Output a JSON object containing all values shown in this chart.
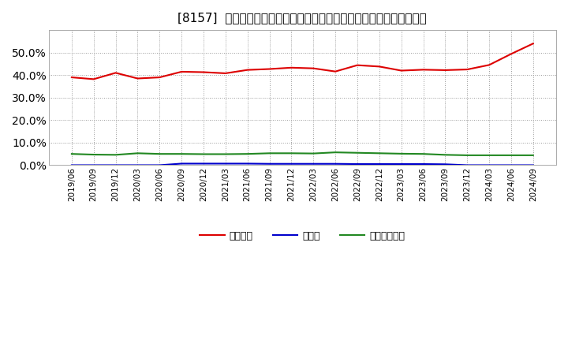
{
  "title": "[8157]  自己資本、のれん、繰延税金資産の総資産に対する比率の推移",
  "x_labels": [
    "2019/06",
    "2019/09",
    "2019/12",
    "2020/03",
    "2020/06",
    "2020/09",
    "2020/12",
    "2021/03",
    "2021/06",
    "2021/09",
    "2021/12",
    "2022/03",
    "2022/06",
    "2022/09",
    "2022/12",
    "2023/03",
    "2023/06",
    "2023/09",
    "2023/12",
    "2024/03",
    "2024/06",
    "2024/09"
  ],
  "jiko_shihon": [
    0.39,
    0.382,
    0.41,
    0.385,
    0.39,
    0.415,
    0.413,
    0.408,
    0.423,
    0.427,
    0.433,
    0.43,
    0.416,
    0.444,
    0.438,
    0.42,
    0.424,
    0.422,
    0.425,
    0.445,
    0.494,
    0.54
  ],
  "noren": [
    0.0,
    0.0,
    0.0,
    0.0,
    0.0,
    0.007,
    0.007,
    0.007,
    0.007,
    0.006,
    0.006,
    0.006,
    0.006,
    0.005,
    0.005,
    0.005,
    0.005,
    0.004,
    0.0,
    0.0,
    0.0,
    0.0
  ],
  "kurinobe_zeikinn": [
    0.05,
    0.047,
    0.046,
    0.053,
    0.05,
    0.05,
    0.049,
    0.049,
    0.05,
    0.053,
    0.053,
    0.052,
    0.057,
    0.055,
    0.053,
    0.051,
    0.05,
    0.046,
    0.044,
    0.044,
    0.044,
    0.044
  ],
  "jiko_color": "#dd0000",
  "noren_color": "#0000cc",
  "kurinobe_color": "#228822",
  "legend_labels": [
    "自己資本",
    "のれん",
    "繰延税金資産"
  ],
  "ylim": [
    0.0,
    0.6
  ],
  "yticks": [
    0.0,
    0.1,
    0.2,
    0.3,
    0.4,
    0.5
  ],
  "background_color": "#ffffff",
  "plot_bg_color": "#ffffff",
  "grid_color": "#999999",
  "title_fontsize": 11,
  "linewidth": 1.5
}
